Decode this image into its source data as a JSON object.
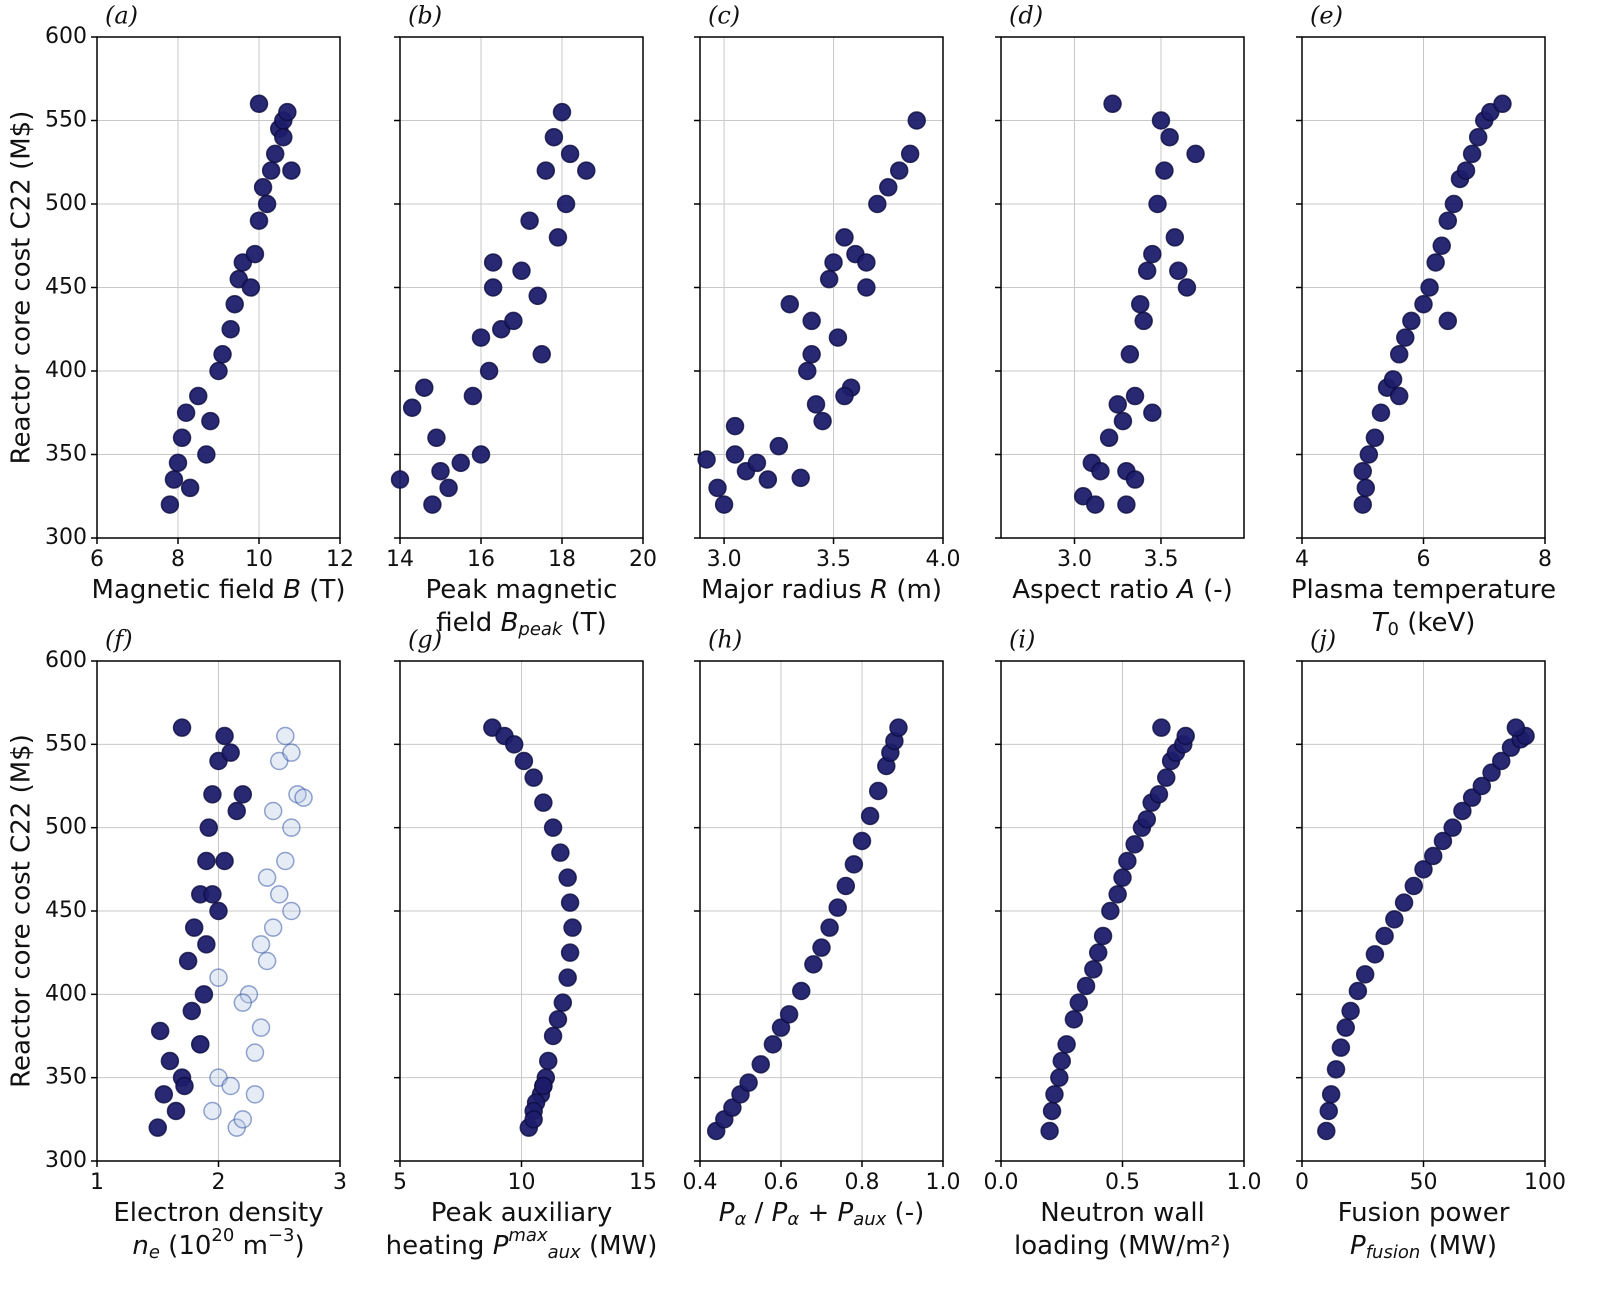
{
  "chart_data": [
    {
      "type": "scatter",
      "title": "(a)",
      "ylabel": "Reactor core cost C22 (M$)",
      "xlabel": [
        [
          "Magnetic field ",
          {
            "text": "B",
            "style": "i"
          },
          " (T)"
        ]
      ],
      "x": [
        7.8,
        7.9,
        8.0,
        8.1,
        8.3,
        8.2,
        8.5,
        8.7,
        8.8,
        9.0,
        9.1,
        9.3,
        9.4,
        9.5,
        9.6,
        9.8,
        9.9,
        10.0,
        10.1,
        10.2,
        10.3,
        10.4,
        10.5,
        10.6,
        10.7,
        10.8,
        10.0,
        10.6
      ],
      "values": [
        320,
        335,
        345,
        360,
        330,
        375,
        385,
        350,
        370,
        400,
        410,
        425,
        440,
        455,
        465,
        450,
        470,
        490,
        510,
        500,
        520,
        530,
        545,
        550,
        555,
        520,
        560,
        540
      ],
      "color": "#1c1c6b",
      "xlim": [
        6,
        12
      ],
      "xticks": [
        6,
        8,
        10,
        12
      ],
      "ylim": [
        300,
        600
      ],
      "yticks": [
        300,
        350,
        400,
        450,
        500,
        550,
        600
      ],
      "grid": true
    },
    {
      "type": "scatter",
      "title": "(b)",
      "xlabel": [
        [
          "Peak magnetic"
        ],
        [
          "field ",
          {
            "text": "B",
            "style": "i"
          },
          {
            "text": "peak",
            "style": "isub"
          },
          " (T)"
        ]
      ],
      "x": [
        14.0,
        14.3,
        14.6,
        14.8,
        15.0,
        15.2,
        14.9,
        15.5,
        16.0,
        16.2,
        16.3,
        15.8,
        16.5,
        16.8,
        16.3,
        17.0,
        17.2,
        17.4,
        17.6,
        17.8,
        18.0,
        18.2,
        18.6,
        17.5,
        17.9,
        18.1,
        16.0
      ],
      "values": [
        335,
        378,
        390,
        320,
        340,
        330,
        360,
        345,
        350,
        400,
        465,
        385,
        425,
        430,
        450,
        460,
        490,
        445,
        520,
        540,
        555,
        530,
        520,
        410,
        480,
        500,
        420
      ],
      "color": "#1c1c6b",
      "xlim": [
        14,
        20
      ],
      "xticks": [
        14,
        16,
        18,
        20
      ],
      "ylim": [
        300,
        600
      ],
      "yticks": [
        300,
        350,
        400,
        450,
        500,
        550,
        600
      ],
      "grid": true
    },
    {
      "type": "scatter",
      "title": "(c)",
      "xlabel": [
        [
          "Major radius ",
          {
            "text": "R",
            "style": "i"
          },
          " (m)"
        ]
      ],
      "x": [
        2.92,
        2.97,
        3.0,
        3.05,
        3.1,
        3.15,
        3.2,
        3.25,
        3.3,
        3.35,
        3.38,
        3.4,
        3.42,
        3.45,
        3.48,
        3.5,
        3.52,
        3.55,
        3.58,
        3.6,
        3.65,
        3.7,
        3.75,
        3.8,
        3.85,
        3.88,
        3.4,
        3.55,
        3.65,
        3.05
      ],
      "values": [
        347,
        330,
        320,
        367,
        340,
        345,
        335,
        355,
        440,
        336,
        400,
        430,
        380,
        370,
        455,
        465,
        420,
        480,
        390,
        470,
        450,
        500,
        510,
        520,
        530,
        550,
        410,
        385,
        465,
        350
      ],
      "color": "#1c1c6b",
      "xlim": [
        2.89,
        4.0
      ],
      "xticks": [
        {
          "value": 3.0,
          "label": "3.0"
        },
        {
          "value": 3.5,
          "label": "3.5"
        },
        {
          "value": 4.0,
          "label": "4.0"
        }
      ],
      "ylim": [
        300,
        600
      ],
      "yticks": [
        300,
        350,
        400,
        450,
        500,
        550,
        600
      ],
      "grid": true
    },
    {
      "type": "scatter",
      "title": "(d)",
      "xlabel": [
        [
          "Aspect ratio ",
          {
            "text": "A",
            "style": "i"
          },
          " (-)"
        ]
      ],
      "x": [
        3.05,
        3.1,
        3.12,
        3.15,
        3.2,
        3.22,
        3.25,
        3.28,
        3.3,
        3.32,
        3.35,
        3.38,
        3.4,
        3.42,
        3.45,
        3.48,
        3.5,
        3.52,
        3.55,
        3.58,
        3.6,
        3.65,
        3.7,
        3.3,
        3.45,
        3.35
      ],
      "values": [
        325,
        345,
        320,
        340,
        360,
        560,
        380,
        370,
        340,
        410,
        385,
        440,
        430,
        460,
        470,
        500,
        550,
        520,
        540,
        480,
        460,
        450,
        530,
        320,
        375,
        335
      ],
      "color": "#1c1c6b",
      "xlim": [
        2.575,
        3.98
      ],
      "xticks": [
        {
          "value": 3.0,
          "label": "3.0"
        },
        {
          "value": 3.5,
          "label": "3.5"
        }
      ],
      "ylim": [
        300,
        600
      ],
      "yticks": [
        300,
        350,
        400,
        450,
        500,
        550,
        600
      ],
      "grid": true
    },
    {
      "type": "scatter",
      "title": "(e)",
      "xlabel": [
        [
          "Plasma temperature"
        ],
        [
          {
            "text": "T",
            "style": "i"
          },
          {
            "text": "0",
            "style": "sub"
          },
          " (keV)"
        ]
      ],
      "x": [
        5.0,
        5.0,
        5.05,
        5.1,
        5.2,
        5.3,
        5.4,
        5.5,
        5.6,
        5.7,
        5.8,
        6.0,
        6.1,
        6.2,
        6.3,
        6.4,
        6.5,
        6.6,
        6.7,
        6.8,
        6.9,
        7.0,
        7.1,
        7.3,
        5.6,
        6.4
      ],
      "values": [
        320,
        340,
        330,
        350,
        360,
        375,
        390,
        395,
        410,
        420,
        430,
        440,
        450,
        465,
        475,
        490,
        500,
        515,
        520,
        530,
        540,
        550,
        555,
        560,
        385,
        430
      ],
      "color": "#1c1c6b",
      "xlim": [
        4,
        8
      ],
      "xticks": [
        4,
        6,
        8
      ],
      "ylim": [
        300,
        600
      ],
      "yticks": [
        300,
        350,
        400,
        450,
        500,
        550,
        600
      ],
      "grid": true
    },
    {
      "type": "scatter",
      "title": "(f)",
      "ylabel": "Reactor core cost C22 (M$)",
      "xlabel": [
        [
          "Electron density"
        ],
        [
          {
            "text": "n",
            "style": "i"
          },
          {
            "text": "e",
            "style": "isub"
          },
          "  (10",
          {
            "text": "20",
            "style": "sup"
          },
          " m",
          {
            "text": "−3",
            "style": "sup"
          },
          ")"
        ]
      ],
      "series": [
        {
          "color": "#b8c8e6",
          "opacity": 0.35,
          "x": [
            1.85,
            1.95,
            2.0,
            2.1,
            2.15,
            2.2,
            2.3,
            2.35,
            2.4,
            2.45,
            2.5,
            2.55,
            2.6,
            2.65,
            2.7,
            2.5,
            2.55,
            2.6,
            2.35,
            2.25,
            2.2,
            2.4,
            2.45,
            2.6,
            2.0,
            2.3
          ],
          "values": [
            370,
            330,
            350,
            345,
            320,
            325,
            340,
            380,
            420,
            440,
            460,
            480,
            500,
            520,
            518,
            540,
            555,
            545,
            430,
            400,
            395,
            470,
            510,
            450,
            410,
            365
          ]
        },
        {
          "color": "#1c1c6b",
          "opacity": 0.95,
          "x": [
            1.5,
            1.55,
            1.6,
            1.52,
            1.65,
            1.7,
            1.72,
            1.75,
            1.8,
            1.85,
            1.88,
            1.9,
            1.92,
            1.95,
            2.0,
            2.05,
            2.1,
            2.15,
            1.78,
            1.85,
            1.95,
            1.9,
            2.0,
            2.05,
            1.7,
            2.2
          ],
          "values": [
            320,
            340,
            360,
            378,
            330,
            350,
            345,
            420,
            440,
            460,
            400,
            480,
            500,
            520,
            540,
            555,
            545,
            510,
            390,
            370,
            460,
            430,
            450,
            480,
            560,
            520
          ]
        }
      ],
      "xlim": [
        1,
        3
      ],
      "xticks": [
        1,
        2,
        3
      ],
      "ylim": [
        300,
        600
      ],
      "yticks": [
        300,
        350,
        400,
        450,
        500,
        550,
        600
      ],
      "grid": true
    },
    {
      "type": "scatter",
      "title": "(g)",
      "xlabel": [
        [
          "Peak auxiliary"
        ],
        [
          "heating ",
          {
            "text": "P",
            "style": "i"
          },
          {
            "text": "max",
            "style": "isup"
          },
          {
            "text": "aux",
            "style": "isub"
          },
          " (MW)"
        ]
      ],
      "x": [
        8.8,
        9.3,
        9.7,
        10.1,
        10.5,
        10.9,
        11.3,
        11.6,
        11.9,
        12.0,
        12.1,
        12.0,
        11.9,
        11.7,
        11.5,
        11.3,
        11.1,
        11.0,
        10.9,
        10.8,
        10.6,
        10.5,
        10.3,
        10.5,
        10.9
      ],
      "values": [
        560,
        555,
        550,
        540,
        530,
        515,
        500,
        485,
        470,
        455,
        440,
        425,
        410,
        395,
        385,
        375,
        360,
        350,
        345,
        340,
        335,
        330,
        320,
        325,
        345
      ],
      "color": "#1c1c6b",
      "xlim": [
        5,
        15
      ],
      "xticks": [
        5,
        10,
        15
      ],
      "ylim": [
        300,
        600
      ],
      "yticks": [
        300,
        350,
        400,
        450,
        500,
        550,
        600
      ],
      "grid": true
    },
    {
      "type": "scatter",
      "title": "(h)",
      "xlabel": [
        [
          {
            "text": "P",
            "style": "i"
          },
          {
            "text": "α",
            "style": "isub"
          },
          " /  ",
          {
            "text": "P",
            "style": "i"
          },
          {
            "text": "α",
            "style": "isub"
          },
          " + ",
          {
            "text": "P",
            "style": "i"
          },
          {
            "text": "aux",
            "style": "isub"
          },
          " (-)"
        ]
      ],
      "x": [
        0.44,
        0.46,
        0.48,
        0.5,
        0.52,
        0.55,
        0.58,
        0.6,
        0.62,
        0.65,
        0.68,
        0.7,
        0.72,
        0.74,
        0.76,
        0.78,
        0.8,
        0.82,
        0.84,
        0.86,
        0.87,
        0.88,
        0.89
      ],
      "values": [
        318,
        325,
        332,
        340,
        347,
        358,
        370,
        380,
        388,
        402,
        418,
        428,
        440,
        452,
        465,
        478,
        492,
        507,
        522,
        537,
        545,
        552,
        560
      ],
      "color": "#1c1c6b",
      "xlim": [
        0.4,
        1.0
      ],
      "xticks": [
        {
          "value": 0.4,
          "label": "0.4"
        },
        {
          "value": 0.6,
          "label": "0.6"
        },
        {
          "value": 0.8,
          "label": "0.8"
        },
        {
          "value": 1.0,
          "label": "1.0"
        }
      ],
      "ylim": [
        300,
        600
      ],
      "yticks": [
        300,
        350,
        400,
        450,
        500,
        550,
        600
      ],
      "grid": true
    },
    {
      "type": "scatter",
      "title": "(i)",
      "xlabel": [
        [
          "Neutron wall"
        ],
        [
          "loading (MW/m²)"
        ]
      ],
      "x": [
        0.2,
        0.21,
        0.22,
        0.24,
        0.25,
        0.27,
        0.3,
        0.32,
        0.35,
        0.38,
        0.4,
        0.42,
        0.45,
        0.48,
        0.5,
        0.52,
        0.55,
        0.58,
        0.6,
        0.62,
        0.65,
        0.68,
        0.7,
        0.72,
        0.75,
        0.76,
        0.66
      ],
      "values": [
        318,
        330,
        340,
        350,
        360,
        370,
        385,
        395,
        405,
        415,
        425,
        435,
        450,
        460,
        470,
        480,
        490,
        500,
        505,
        515,
        520,
        530,
        540,
        545,
        550,
        555,
        560
      ],
      "color": "#1c1c6b",
      "xlim": [
        0,
        1
      ],
      "xticks": [
        {
          "value": 0,
          "label": "0.0"
        },
        0.5,
        {
          "value": 1,
          "label": "1.0"
        }
      ],
      "ylim": [
        300,
        600
      ],
      "yticks": [
        300,
        350,
        400,
        450,
        500,
        550,
        600
      ],
      "grid": true
    },
    {
      "type": "scatter",
      "title": "(j)",
      "xlabel": [
        [
          "Fusion power"
        ],
        [
          {
            "text": "P",
            "style": "i"
          },
          {
            "text": "fusion",
            "style": "isub"
          },
          " (MW)"
        ]
      ],
      "x": [
        10,
        11,
        12,
        14,
        16,
        18,
        20,
        23,
        26,
        30,
        34,
        38,
        42,
        46,
        50,
        54,
        58,
        62,
        66,
        70,
        74,
        78,
        82,
        86,
        90,
        92,
        88
      ],
      "values": [
        318,
        330,
        340,
        355,
        368,
        380,
        390,
        402,
        412,
        424,
        435,
        445,
        455,
        465,
        475,
        483,
        492,
        500,
        510,
        518,
        525,
        533,
        540,
        548,
        553,
        555,
        560
      ],
      "color": "#1c1c6b",
      "xlim": [
        0,
        100
      ],
      "xticks": [
        0,
        50,
        100
      ],
      "ylim": [
        300,
        600
      ],
      "yticks": [
        300,
        350,
        400,
        450,
        500,
        550,
        600
      ],
      "grid": true
    }
  ]
}
